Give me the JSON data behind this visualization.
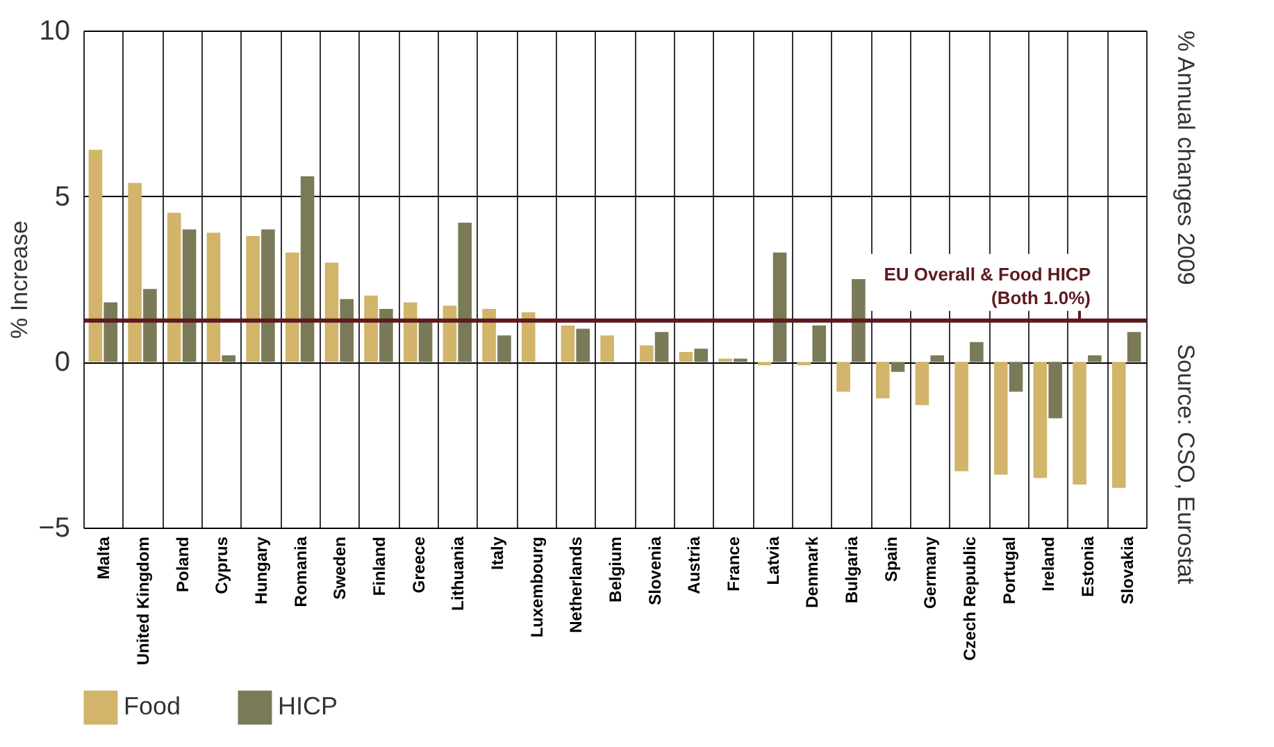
{
  "chart_data": {
    "type": "bar",
    "title": "% Annual changes 2009",
    "ylabel": "% Increase",
    "categories": [
      "Malta",
      "United Kingdom",
      "Poland",
      "Cyprus",
      "Hungary",
      "Romania",
      "Sweden",
      "Finland",
      "Greece",
      "Lithuania",
      "Italy",
      "Luxembourg",
      "Netherlands",
      "Belgium",
      "Slovenia",
      "Austria",
      "France",
      "Latvia",
      "Denmark",
      "Bulgaria",
      "Spain",
      "Germany",
      "Czech Republic",
      "Portugal",
      "Ireland",
      "Estonia",
      "Slovakia"
    ],
    "series": [
      {
        "name": "Food",
        "color": "#d2b46a",
        "values": [
          6.4,
          5.4,
          4.5,
          3.9,
          3.8,
          3.3,
          3.0,
          2.0,
          1.8,
          1.7,
          1.6,
          1.5,
          1.1,
          0.8,
          0.5,
          0.3,
          0.1,
          -0.1,
          -0.1,
          -0.9,
          -1.1,
          -1.3,
          -3.3,
          -3.4,
          -3.5,
          -3.7,
          -3.8
        ]
      },
      {
        "name": "HICP",
        "color": "#7a7a58",
        "values": [
          1.8,
          2.2,
          4.0,
          0.2,
          4.0,
          5.6,
          1.9,
          1.6,
          1.2,
          4.2,
          0.8,
          null,
          1.0,
          null,
          0.9,
          0.4,
          0.1,
          3.3,
          1.1,
          2.5,
          -0.3,
          0.2,
          0.6,
          -0.9,
          -1.7,
          0.2,
          0.9
        ]
      }
    ],
    "ylim": [
      -5,
      10
    ],
    "yticks": [
      -5,
      0,
      5,
      10
    ],
    "grid": true,
    "legend": "bottom",
    "ref_lines": [
      {
        "axis": "y",
        "value": 1.25,
        "label": "EU Overall & Food HICP\n(Both 1.0%)",
        "color": "#5c1a1f"
      }
    ],
    "annotations": [
      "Source: CSO, Eurostat"
    ]
  }
}
